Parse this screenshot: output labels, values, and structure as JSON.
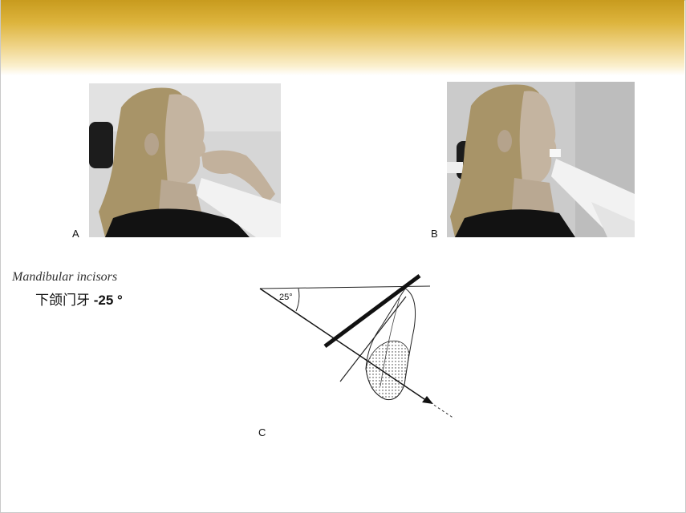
{
  "panels": {
    "a_label": "A",
    "b_label": "B",
    "c_label": "C"
  },
  "caption": {
    "english": "Mandibular incisors",
    "chinese": "下颌门牙",
    "angle": "-25 °"
  },
  "diagram": {
    "angle_label": "25°"
  },
  "colors": {
    "header_gold": "#c89b1e",
    "header_fade": "#fbf0cf"
  }
}
